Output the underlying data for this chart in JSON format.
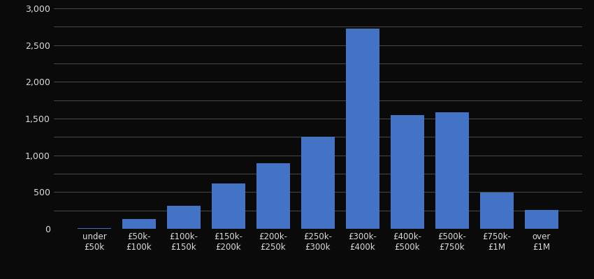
{
  "categories": [
    "under\n£50k",
    "£50k-\n£100k",
    "£100k-\n£150k",
    "£150k-\n£200k",
    "£200k-\n£250k",
    "£250k-\n£300k",
    "£300k-\n£400k",
    "£400k-\n£500k",
    "£500k-\n£750k",
    "£750k-\n£1M",
    "over\n£1M"
  ],
  "values": [
    5,
    130,
    310,
    620,
    890,
    1250,
    2720,
    1550,
    1590,
    490,
    255
  ],
  "bar_color": "#4472c4",
  "background_color": "#0a0a0a",
  "text_color": "#dddddd",
  "grid_color": "#555555",
  "ylim": [
    0,
    3000
  ],
  "yticks_labels": [
    0,
    500,
    1000,
    1500,
    2000,
    2500,
    3000
  ],
  "yticks_minor": [
    250,
    750,
    1250,
    1750,
    2250,
    2750
  ],
  "figsize": [
    8.5,
    4.0
  ],
  "dpi": 100,
  "bar_width": 0.75
}
